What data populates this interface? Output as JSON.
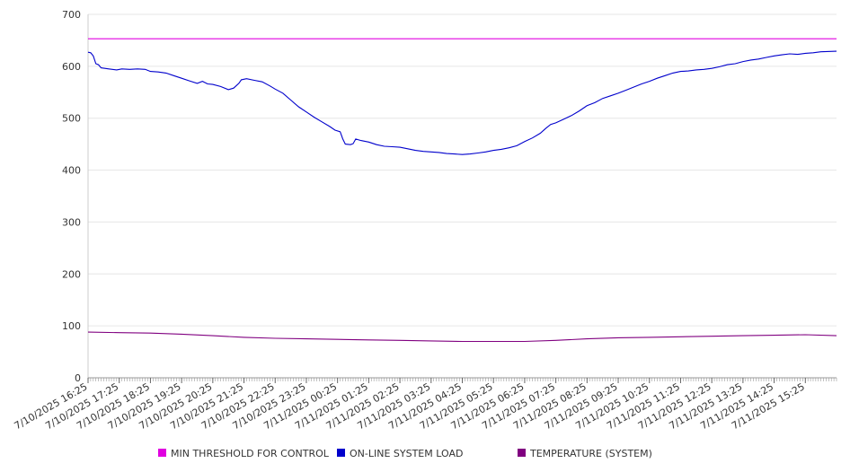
{
  "chart_data": {
    "type": "line",
    "title": "",
    "xlabel": "",
    "ylabel": "",
    "ylim": [
      0,
      700
    ],
    "y_ticks": [
      0,
      100,
      200,
      300,
      400,
      500,
      600,
      700
    ],
    "x_ticks": [
      "7/10/2025 16:25",
      "7/10/2025 17:25",
      "7/10/2025 18:25",
      "7/10/2025 19:25",
      "7/10/2025 20:25",
      "7/10/2025 21:25",
      "7/10/2025 22:25",
      "7/10/2025 23:25",
      "7/11/2025 00:25",
      "7/11/2025 01:25",
      "7/11/2025 02:25",
      "7/11/2025 03:25",
      "7/11/2025 04:25",
      "7/11/2025 05:25",
      "7/11/2025 06:25",
      "7/11/2025 07:25",
      "7/11/2025 08:25",
      "7/11/2025 09:25",
      "7/11/2025 10:25",
      "7/11/2025 11:25",
      "7/11/2025 12:25",
      "7/11/2025 13:25",
      "7/11/2025 14:25",
      "7/11/2025 15:25"
    ],
    "x_start": "7/10/2025 16:25",
    "x_end": "7/11/2025 16:25",
    "grid": true,
    "legend_position": "bottom",
    "series": [
      {
        "name": "MIN THRESHOLD FOR CONTROL",
        "color": "#e000e0",
        "points": [
          [
            "7/10/2025 16:25",
            653
          ],
          [
            "7/11/2025 16:25",
            653
          ]
        ]
      },
      {
        "name": "ON-LINE SYSTEM LOAD",
        "color": "#0000cc",
        "points": [
          [
            "7/10/2025 16:25",
            627
          ],
          [
            "7/10/2025 16:30",
            626
          ],
          [
            "7/10/2025 16:35",
            620
          ],
          [
            "7/10/2025 16:40",
            605
          ],
          [
            "7/10/2025 16:45",
            603
          ],
          [
            "7/10/2025 16:50",
            597
          ],
          [
            "7/10/2025 17:05",
            595
          ],
          [
            "7/10/2025 17:20",
            593
          ],
          [
            "7/10/2025 17:30",
            595
          ],
          [
            "7/10/2025 17:45",
            594
          ],
          [
            "7/10/2025 18:00",
            595
          ],
          [
            "7/10/2025 18:15",
            594
          ],
          [
            "7/10/2025 18:25",
            590
          ],
          [
            "7/10/2025 18:40",
            589
          ],
          [
            "7/10/2025 18:55",
            587
          ],
          [
            "7/10/2025 19:10",
            582
          ],
          [
            "7/10/2025 19:25",
            577
          ],
          [
            "7/10/2025 19:40",
            572
          ],
          [
            "7/10/2025 19:55",
            567
          ],
          [
            "7/10/2025 20:05",
            571
          ],
          [
            "7/10/2025 20:15",
            566
          ],
          [
            "7/10/2025 20:25",
            565
          ],
          [
            "7/10/2025 20:40",
            561
          ],
          [
            "7/10/2025 20:55",
            555
          ],
          [
            "7/10/2025 21:05",
            558
          ],
          [
            "7/10/2025 21:15",
            567
          ],
          [
            "7/10/2025 21:20",
            574
          ],
          [
            "7/10/2025 21:30",
            576
          ],
          [
            "7/10/2025 21:45",
            573
          ],
          [
            "7/10/2025 22:00",
            570
          ],
          [
            "7/10/2025 22:15",
            562
          ],
          [
            "7/10/2025 22:25",
            556
          ],
          [
            "7/10/2025 22:40",
            548
          ],
          [
            "7/10/2025 22:55",
            535
          ],
          [
            "7/10/2025 23:10",
            522
          ],
          [
            "7/10/2025 23:25",
            512
          ],
          [
            "7/10/2025 23:40",
            502
          ],
          [
            "7/10/2025 23:55",
            493
          ],
          [
            "7/11/2025 00:10",
            484
          ],
          [
            "7/11/2025 00:20",
            477
          ],
          [
            "7/11/2025 00:30",
            474
          ],
          [
            "7/11/2025 00:35",
            460
          ],
          [
            "7/11/2025 00:40",
            450
          ],
          [
            "7/11/2025 00:50",
            449
          ],
          [
            "7/11/2025 00:55",
            451
          ],
          [
            "7/11/2025 01:00",
            460
          ],
          [
            "7/11/2025 01:10",
            457
          ],
          [
            "7/11/2025 01:25",
            454
          ],
          [
            "7/11/2025 01:40",
            449
          ],
          [
            "7/11/2025 01:55",
            446
          ],
          [
            "7/11/2025 02:10",
            445
          ],
          [
            "7/11/2025 02:25",
            444
          ],
          [
            "7/11/2025 02:40",
            441
          ],
          [
            "7/11/2025 02:55",
            438
          ],
          [
            "7/11/2025 03:10",
            436
          ],
          [
            "7/11/2025 03:25",
            435
          ],
          [
            "7/11/2025 03:40",
            434
          ],
          [
            "7/11/2025 03:55",
            432
          ],
          [
            "7/11/2025 04:10",
            431
          ],
          [
            "7/11/2025 04:25",
            430
          ],
          [
            "7/11/2025 04:40",
            431
          ],
          [
            "7/11/2025 04:55",
            433
          ],
          [
            "7/11/2025 05:10",
            435
          ],
          [
            "7/11/2025 05:25",
            438
          ],
          [
            "7/11/2025 05:40",
            440
          ],
          [
            "7/11/2025 05:55",
            443
          ],
          [
            "7/11/2025 06:10",
            447
          ],
          [
            "7/11/2025 06:25",
            455
          ],
          [
            "7/11/2025 06:40",
            462
          ],
          [
            "7/11/2025 06:55",
            471
          ],
          [
            "7/11/2025 07:05",
            480
          ],
          [
            "7/11/2025 07:15",
            488
          ],
          [
            "7/11/2025 07:25",
            491
          ],
          [
            "7/11/2025 07:40",
            498
          ],
          [
            "7/11/2025 07:55",
            505
          ],
          [
            "7/11/2025 08:10",
            514
          ],
          [
            "7/11/2025 08:25",
            524
          ],
          [
            "7/11/2025 08:40",
            530
          ],
          [
            "7/11/2025 08:55",
            538
          ],
          [
            "7/11/2025 09:10",
            543
          ],
          [
            "7/11/2025 09:25",
            548
          ],
          [
            "7/11/2025 09:40",
            554
          ],
          [
            "7/11/2025 09:55",
            560
          ],
          [
            "7/11/2025 10:10",
            566
          ],
          [
            "7/11/2025 10:25",
            571
          ],
          [
            "7/11/2025 10:40",
            577
          ],
          [
            "7/11/2025 10:55",
            582
          ],
          [
            "7/11/2025 11:10",
            587
          ],
          [
            "7/11/2025 11:25",
            590
          ],
          [
            "7/11/2025 11:40",
            591
          ],
          [
            "7/11/2025 11:55",
            593
          ],
          [
            "7/11/2025 12:10",
            594
          ],
          [
            "7/11/2025 12:25",
            596
          ],
          [
            "7/11/2025 12:40",
            599
          ],
          [
            "7/11/2025 12:55",
            603
          ],
          [
            "7/11/2025 13:10",
            605
          ],
          [
            "7/11/2025 13:25",
            609
          ],
          [
            "7/11/2025 13:40",
            612
          ],
          [
            "7/11/2025 13:55",
            614
          ],
          [
            "7/11/2025 14:10",
            617
          ],
          [
            "7/11/2025 14:25",
            620
          ],
          [
            "7/11/2025 14:40",
            622
          ],
          [
            "7/11/2025 14:55",
            624
          ],
          [
            "7/11/2025 15:10",
            623
          ],
          [
            "7/11/2025 15:25",
            625
          ],
          [
            "7/11/2025 15:40",
            626
          ],
          [
            "7/11/2025 15:55",
            628
          ],
          [
            "7/11/2025 16:25",
            629
          ]
        ]
      },
      {
        "name": "TEMPERATURE (SYSTEM)",
        "color": "#800080",
        "points": [
          [
            "7/10/2025 16:25",
            88
          ],
          [
            "7/10/2025 17:25",
            87
          ],
          [
            "7/10/2025 18:25",
            86
          ],
          [
            "7/10/2025 19:25",
            84
          ],
          [
            "7/10/2025 20:25",
            81
          ],
          [
            "7/10/2025 21:25",
            78
          ],
          [
            "7/10/2025 22:25",
            76
          ],
          [
            "7/10/2025 23:25",
            75
          ],
          [
            "7/11/2025 00:25",
            74
          ],
          [
            "7/11/2025 01:25",
            73
          ],
          [
            "7/11/2025 02:25",
            72
          ],
          [
            "7/11/2025 03:25",
            71
          ],
          [
            "7/11/2025 04:25",
            70
          ],
          [
            "7/11/2025 05:25",
            70
          ],
          [
            "7/11/2025 06:25",
            70
          ],
          [
            "7/11/2025 07:25",
            72
          ],
          [
            "7/11/2025 08:25",
            75
          ],
          [
            "7/11/2025 09:25",
            77
          ],
          [
            "7/11/2025 10:25",
            78
          ],
          [
            "7/11/2025 11:25",
            79
          ],
          [
            "7/11/2025 12:25",
            80
          ],
          [
            "7/11/2025 13:25",
            81
          ],
          [
            "7/11/2025 14:25",
            82
          ],
          [
            "7/11/2025 15:25",
            83
          ],
          [
            "7/11/2025 16:25",
            81
          ]
        ]
      }
    ]
  }
}
